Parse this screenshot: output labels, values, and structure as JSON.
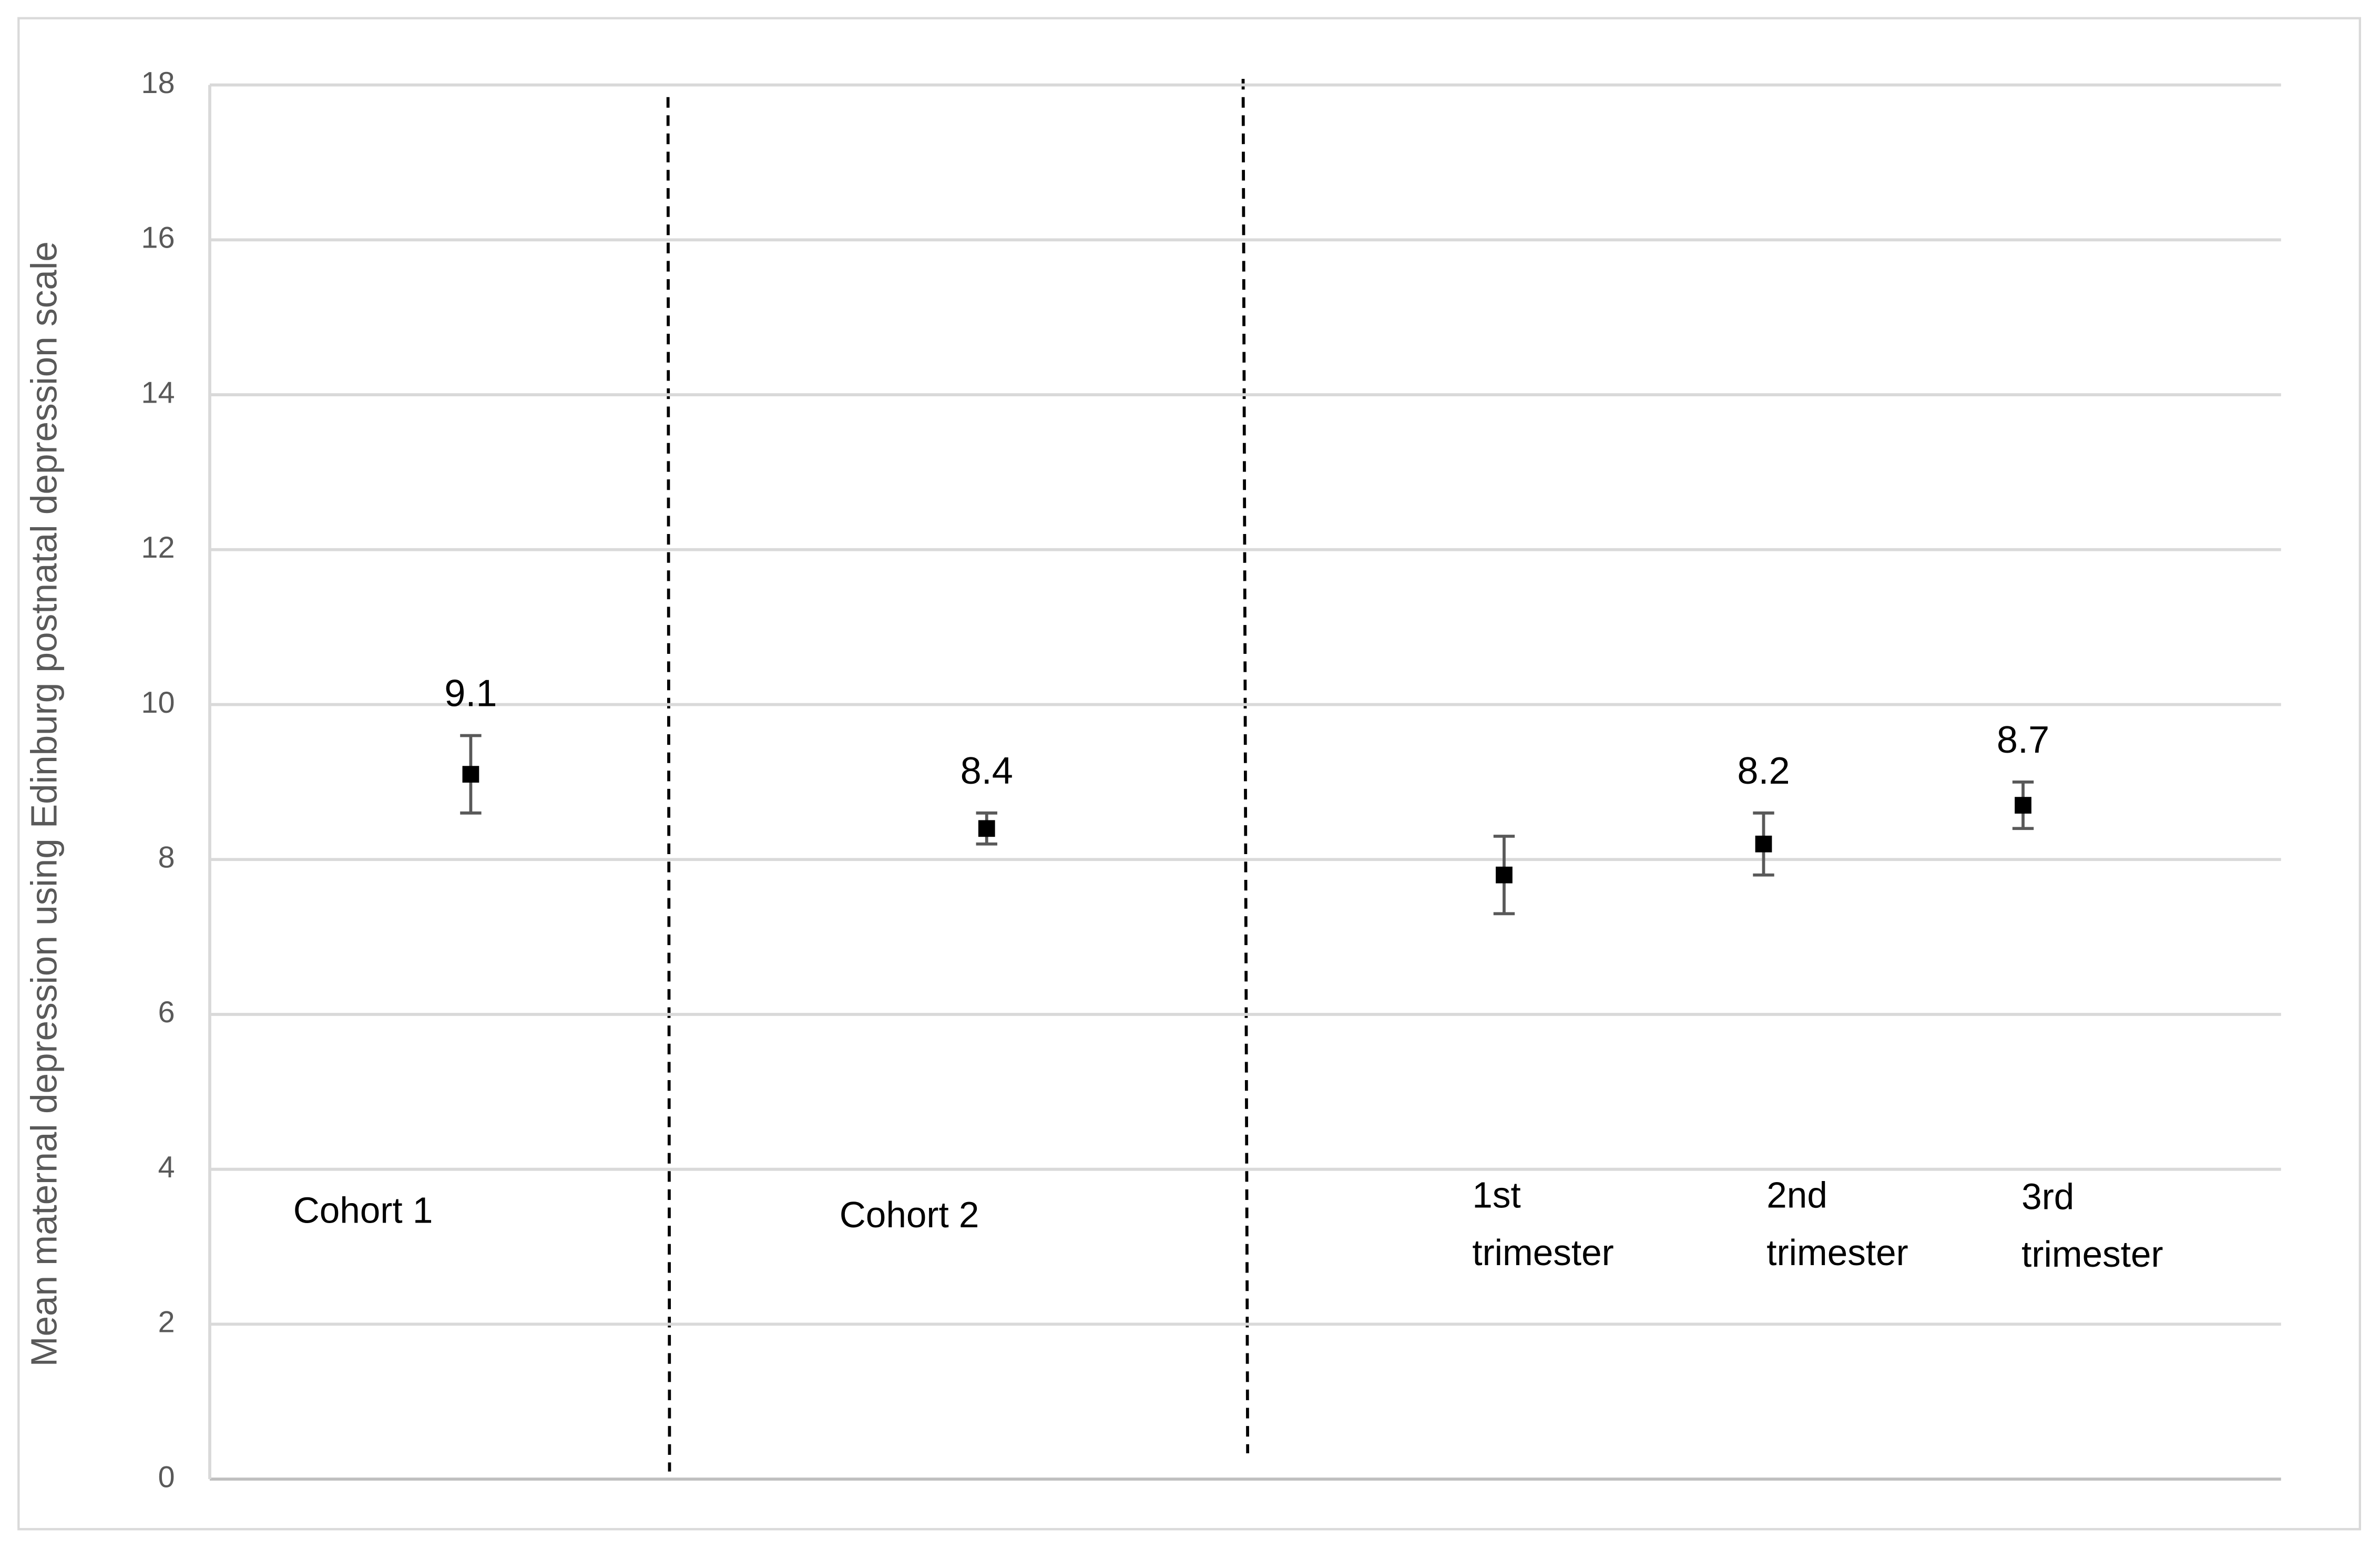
{
  "chart_data": {
    "type": "errorbar",
    "y_label": "Mean maternal depression using Edinburg postnatal depression scale",
    "categories": [
      "Cohort 1",
      "Cohort 2",
      "1st trimester",
      "2nd trimester",
      "3rd trimester"
    ],
    "values": [
      9.1,
      8.4,
      7.8,
      8.2,
      8.7
    ],
    "errors": [
      0.5,
      0.2,
      0.5,
      0.4,
      0.3
    ],
    "value_labels": [
      "9.1",
      "8.4",
      null,
      "8.2",
      "8.7"
    ],
    "color": "#000000",
    "error_color": "#595959",
    "ylim": [
      0,
      18
    ],
    "yticks": [
      0,
      2,
      4,
      6,
      8,
      10,
      12,
      14,
      16,
      18
    ],
    "grid": true
  }
}
